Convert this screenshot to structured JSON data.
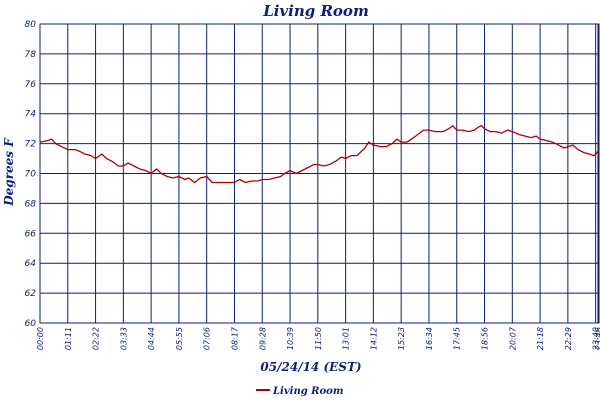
{
  "chart_data": {
    "type": "line",
    "title": "Living Room",
    "xlabel": "05/24/14 (EST)",
    "ylabel": "Degrees F",
    "ylim": [
      60,
      80
    ],
    "yticks": [
      "60",
      "62",
      "64",
      "66",
      "68",
      "70",
      "72",
      "74",
      "76",
      "78",
      "80"
    ],
    "xlim_minutes": [
      0,
      1426
    ],
    "xticks": [
      {
        "label": "00:00",
        "minutes": 0
      },
      {
        "label": "01:11",
        "minutes": 71
      },
      {
        "label": "02:22",
        "minutes": 142
      },
      {
        "label": "03:33",
        "minutes": 213
      },
      {
        "label": "04:44",
        "minutes": 284
      },
      {
        "label": "05:55",
        "minutes": 355
      },
      {
        "label": "07:06",
        "minutes": 426
      },
      {
        "label": "08:17",
        "minutes": 497
      },
      {
        "label": "09:28",
        "minutes": 568
      },
      {
        "label": "10:39",
        "minutes": 639
      },
      {
        "label": "11:50",
        "minutes": 710
      },
      {
        "label": "13:01",
        "minutes": 781
      },
      {
        "label": "14:12",
        "minutes": 852
      },
      {
        "label": "15:23",
        "minutes": 923
      },
      {
        "label": "16:34",
        "minutes": 994
      },
      {
        "label": "17:45",
        "minutes": 1065
      },
      {
        "label": "18:56",
        "minutes": 1136
      },
      {
        "label": "20:07",
        "minutes": 1207
      },
      {
        "label": "21:18",
        "minutes": 1278
      },
      {
        "label": "22:29",
        "minutes": 1349
      },
      {
        "label": "23:40",
        "minutes": 1420
      },
      {
        "label": "23:46",
        "minutes": 1426
      }
    ],
    "grid": true,
    "legend_position": "bottom-center",
    "series": [
      {
        "name": "Living Room",
        "color": "#b00000",
        "points": [
          [
            0,
            72.1
          ],
          [
            20,
            72.2
          ],
          [
            30,
            72.3
          ],
          [
            40,
            72.0
          ],
          [
            55,
            71.8
          ],
          [
            71,
            71.6
          ],
          [
            90,
            71.6
          ],
          [
            100,
            71.5
          ],
          [
            115,
            71.3
          ],
          [
            130,
            71.2
          ],
          [
            142,
            71.0
          ],
          [
            158,
            71.3
          ],
          [
            170,
            71.0
          ],
          [
            185,
            70.8
          ],
          [
            200,
            70.5
          ],
          [
            213,
            70.5
          ],
          [
            225,
            70.7
          ],
          [
            240,
            70.5
          ],
          [
            255,
            70.3
          ],
          [
            270,
            70.2
          ],
          [
            284,
            70.0
          ],
          [
            298,
            70.3
          ],
          [
            310,
            70.0
          ],
          [
            325,
            69.8
          ],
          [
            340,
            69.7
          ],
          [
            355,
            69.8
          ],
          [
            370,
            69.6
          ],
          [
            380,
            69.7
          ],
          [
            395,
            69.4
          ],
          [
            410,
            69.7
          ],
          [
            426,
            69.8
          ],
          [
            440,
            69.4
          ],
          [
            460,
            69.4
          ],
          [
            480,
            69.4
          ],
          [
            497,
            69.4
          ],
          [
            510,
            69.6
          ],
          [
            525,
            69.4
          ],
          [
            540,
            69.5
          ],
          [
            555,
            69.5
          ],
          [
            568,
            69.6
          ],
          [
            585,
            69.6
          ],
          [
            600,
            69.7
          ],
          [
            615,
            69.8
          ],
          [
            625,
            70.0
          ],
          [
            639,
            70.2
          ],
          [
            655,
            70.0
          ],
          [
            670,
            70.2
          ],
          [
            685,
            70.4
          ],
          [
            700,
            70.6
          ],
          [
            710,
            70.6
          ],
          [
            725,
            70.5
          ],
          [
            740,
            70.6
          ],
          [
            755,
            70.8
          ],
          [
            770,
            71.1
          ],
          [
            781,
            71.0
          ],
          [
            795,
            71.2
          ],
          [
            810,
            71.2
          ],
          [
            822,
            71.5
          ],
          [
            830,
            71.7
          ],
          [
            840,
            72.1
          ],
          [
            852,
            71.9
          ],
          [
            870,
            71.8
          ],
          [
            885,
            71.8
          ],
          [
            900,
            72.0
          ],
          [
            912,
            72.3
          ],
          [
            923,
            72.1
          ],
          [
            938,
            72.1
          ],
          [
            955,
            72.4
          ],
          [
            970,
            72.7
          ],
          [
            980,
            72.9
          ],
          [
            994,
            72.9
          ],
          [
            1010,
            72.8
          ],
          [
            1030,
            72.8
          ],
          [
            1045,
            73.0
          ],
          [
            1055,
            73.2
          ],
          [
            1065,
            72.9
          ],
          [
            1080,
            72.9
          ],
          [
            1095,
            72.8
          ],
          [
            1110,
            72.9
          ],
          [
            1120,
            73.1
          ],
          [
            1128,
            73.2
          ],
          [
            1136,
            73.0
          ],
          [
            1150,
            72.8
          ],
          [
            1165,
            72.8
          ],
          [
            1180,
            72.7
          ],
          [
            1195,
            72.9
          ],
          [
            1207,
            72.8
          ],
          [
            1225,
            72.6
          ],
          [
            1240,
            72.5
          ],
          [
            1255,
            72.4
          ],
          [
            1268,
            72.5
          ],
          [
            1278,
            72.3
          ],
          [
            1295,
            72.2
          ],
          [
            1310,
            72.1
          ],
          [
            1325,
            71.9
          ],
          [
            1340,
            71.7
          ],
          [
            1349,
            71.8
          ],
          [
            1362,
            71.9
          ],
          [
            1375,
            71.6
          ],
          [
            1390,
            71.4
          ],
          [
            1405,
            71.3
          ],
          [
            1415,
            71.2
          ],
          [
            1420,
            71.3
          ],
          [
            1426,
            71.5
          ]
        ]
      }
    ]
  }
}
